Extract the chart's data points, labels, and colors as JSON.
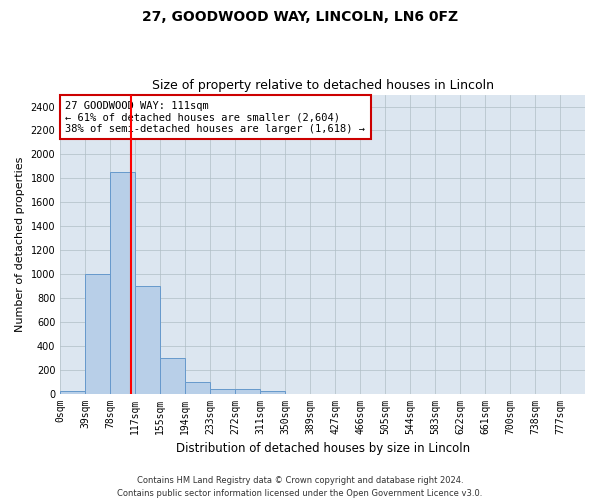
{
  "title1": "27, GOODWOOD WAY, LINCOLN, LN6 0FZ",
  "title2": "Size of property relative to detached houses in Lincoln",
  "xlabel": "Distribution of detached houses by size in Lincoln",
  "ylabel": "Number of detached properties",
  "bin_labels": [
    "0sqm",
    "39sqm",
    "78sqm",
    "117sqm",
    "155sqm",
    "194sqm",
    "233sqm",
    "272sqm",
    "311sqm",
    "350sqm",
    "389sqm",
    "427sqm",
    "466sqm",
    "505sqm",
    "544sqm",
    "583sqm",
    "622sqm",
    "661sqm",
    "700sqm",
    "738sqm",
    "777sqm"
  ],
  "bar_values": [
    25,
    1000,
    1850,
    900,
    300,
    100,
    40,
    35,
    20,
    0,
    0,
    0,
    0,
    0,
    0,
    0,
    0,
    0,
    0,
    0,
    0
  ],
  "bar_color": "#b8cfe8",
  "bar_edge_color": "#6699cc",
  "red_line_x": 2.846,
  "annotation_text": "27 GOODWOOD WAY: 111sqm\n← 61% of detached houses are smaller (2,604)\n38% of semi-detached houses are larger (1,618) →",
  "annotation_box_color": "#ffffff",
  "annotation_box_edge": "#cc0000",
  "ylim": [
    0,
    2500
  ],
  "yticks": [
    0,
    200,
    400,
    600,
    800,
    1000,
    1200,
    1400,
    1600,
    1800,
    2000,
    2200,
    2400
  ],
  "footer1": "Contains HM Land Registry data © Crown copyright and database right 2024.",
  "footer2": "Contains public sector information licensed under the Open Government Licence v3.0.",
  "bg_color": "#ffffff",
  "plot_bg_color": "#dce6f0",
  "grid_color": "#b0bec5",
  "title1_fontsize": 10,
  "title2_fontsize": 9,
  "annot_fontsize": 7.5,
  "ylabel_fontsize": 8,
  "xlabel_fontsize": 8.5,
  "tick_fontsize": 7
}
